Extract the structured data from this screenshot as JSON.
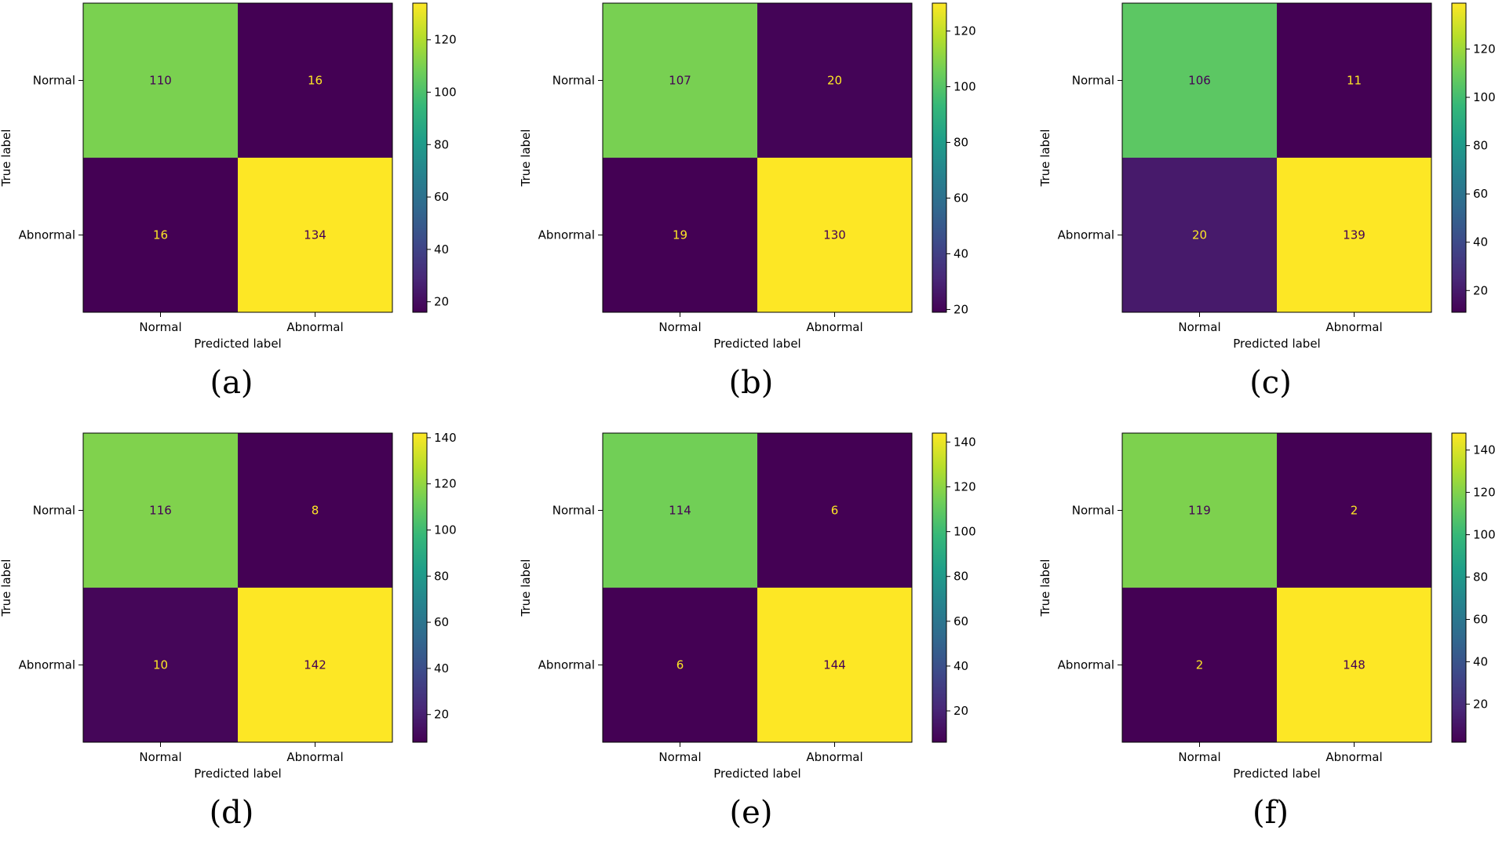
{
  "chart_data": [
    {
      "type": "heatmap",
      "caption": "(a)",
      "row_labels": [
        "Normal",
        "Abnormal"
      ],
      "col_labels": [
        "Normal",
        "Abnormal"
      ],
      "values": [
        [
          110,
          16
        ],
        [
          16,
          134
        ]
      ],
      "xlabel": "Predicted label",
      "ylabel": "True label",
      "colorbar_range": [
        16,
        134
      ],
      "colorbar_ticks": [
        20,
        40,
        60,
        80,
        100,
        120
      ]
    },
    {
      "type": "heatmap",
      "caption": "(b)",
      "row_labels": [
        "Normal",
        "Abnormal"
      ],
      "col_labels": [
        "Normal",
        "Abnormal"
      ],
      "values": [
        [
          107,
          20
        ],
        [
          19,
          130
        ]
      ],
      "xlabel": "Predicted label",
      "ylabel": "True label",
      "colorbar_range": [
        19,
        130
      ],
      "colorbar_ticks": [
        20,
        40,
        60,
        80,
        100,
        120
      ]
    },
    {
      "type": "heatmap",
      "caption": "(c)",
      "row_labels": [
        "Normal",
        "Abnormal"
      ],
      "col_labels": [
        "Normal",
        "Abnormal"
      ],
      "values": [
        [
          106,
          11
        ],
        [
          20,
          139
        ]
      ],
      "xlabel": "Predicted label",
      "ylabel": "True label",
      "colorbar_range": [
        11,
        139
      ],
      "colorbar_ticks": [
        20,
        40,
        60,
        80,
        100,
        120
      ]
    },
    {
      "type": "heatmap",
      "caption": "(d)",
      "row_labels": [
        "Normal",
        "Abnormal"
      ],
      "col_labels": [
        "Normal",
        "Abnormal"
      ],
      "values": [
        [
          116,
          8
        ],
        [
          10,
          142
        ]
      ],
      "xlabel": "Predicted label",
      "ylabel": "True label",
      "colorbar_range": [
        8,
        142
      ],
      "colorbar_ticks": [
        20,
        40,
        60,
        80,
        100,
        120,
        140
      ]
    },
    {
      "type": "heatmap",
      "caption": "(e)",
      "row_labels": [
        "Normal",
        "Abnormal"
      ],
      "col_labels": [
        "Normal",
        "Abnormal"
      ],
      "values": [
        [
          114,
          6
        ],
        [
          6,
          144
        ]
      ],
      "xlabel": "Predicted label",
      "ylabel": "True label",
      "colorbar_range": [
        6,
        144
      ],
      "colorbar_ticks": [
        20,
        40,
        60,
        80,
        100,
        120,
        140
      ]
    },
    {
      "type": "heatmap",
      "caption": "(f)",
      "row_labels": [
        "Normal",
        "Abnormal"
      ],
      "col_labels": [
        "Normal",
        "Abnormal"
      ],
      "values": [
        [
          119,
          2
        ],
        [
          2,
          148
        ]
      ],
      "xlabel": "Predicted label",
      "ylabel": "True label",
      "colorbar_range": [
        2,
        148
      ],
      "colorbar_ticks": [
        20,
        40,
        60,
        80,
        100,
        120,
        140
      ]
    }
  ],
  "colormap": {
    "name": "viridis",
    "stops": [
      "#440154",
      "#482878",
      "#3e4989",
      "#31688e",
      "#26828e",
      "#1f9e89",
      "#35b779",
      "#6ece58",
      "#b5de2b",
      "#fde725"
    ]
  }
}
